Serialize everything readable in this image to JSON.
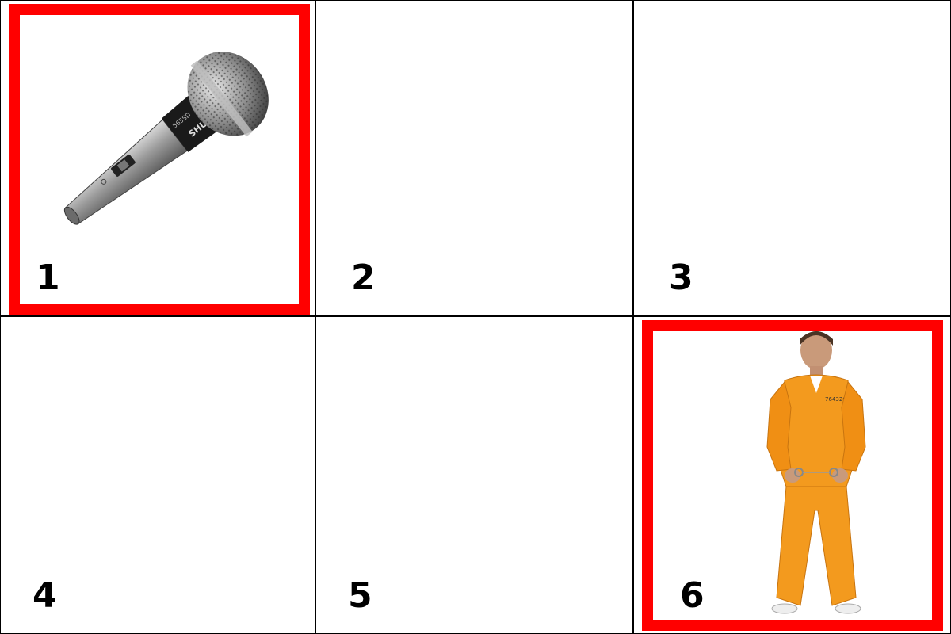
{
  "grid": {
    "cells": [
      {
        "label": "1",
        "selected": true,
        "content": "microphone"
      },
      {
        "label": "2",
        "selected": false,
        "content": ""
      },
      {
        "label": "3",
        "selected": false,
        "content": ""
      },
      {
        "label": "4",
        "selected": false,
        "content": ""
      },
      {
        "label": "5",
        "selected": false,
        "content": ""
      },
      {
        "label": "6",
        "selected": true,
        "content": "prisoner-in-orange-jumpsuit"
      }
    ],
    "selection_color": "#ff0000"
  },
  "images": {
    "microphone": {
      "brand_text": "SHURE",
      "model_text": "565SD"
    },
    "prisoner": {
      "tag_text": "7643267"
    }
  }
}
